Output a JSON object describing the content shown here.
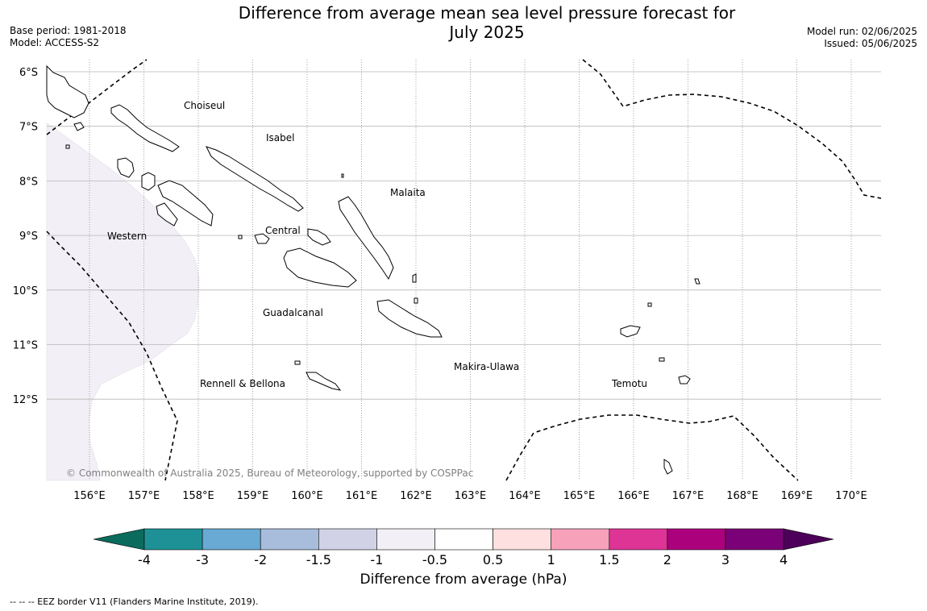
{
  "title": {
    "line1": "Difference from average mean sea level pressure forecast for",
    "line2": "July 2025"
  },
  "meta": {
    "base_period": "Base period: 1981-2018",
    "model": "Model: ACCESS-S2",
    "model_run": "Model run: 02/06/2025",
    "issued": "Issued: 05/06/2025"
  },
  "map": {
    "lat_labels": [
      "6°S",
      "7°S",
      "8°S",
      "9°S",
      "10°S",
      "11°S",
      "12°S"
    ],
    "lon_labels": [
      "156°E",
      "157°E",
      "158°E",
      "159°E",
      "160°E",
      "161°E",
      "162°E",
      "163°E",
      "164°E",
      "165°E",
      "166°E",
      "167°E",
      "168°E",
      "169°E",
      "170°E"
    ],
    "regions": {
      "choiseul": "Choiseul",
      "isabel": "Isabel",
      "malaita": "Malaita",
      "western": "Western",
      "central": "Central",
      "guadalcanal": "Guadalcanal",
      "makira": "Makira-Ulawa",
      "rennell": "Rennell & Bellona",
      "temotu": "Temotu"
    },
    "copyright": "© Commonwealth of Australia 2025, Bureau of Meteorology, supported by COSPPac",
    "shading_color": "#f3eff6",
    "eez_color": "#000000"
  },
  "colorbar": {
    "labels": [
      "-4",
      "-3",
      "-2",
      "-1.5",
      "-1",
      "-0.5",
      "0.5",
      "1",
      "1.5",
      "2",
      "3",
      "4"
    ],
    "colors": {
      "below_min": "#0b6b5c",
      "bins": [
        "#1e9196",
        "#68aad3",
        "#a8bcdc",
        "#d1d2e6",
        "#f3eff6",
        "#ffffff",
        "#fde0df",
        "#f7a1bb",
        "#dd3496",
        "#ac017d",
        "#7a0177"
      ],
      "above_max": "#4d0059"
    },
    "label": "Difference from average (hPa)"
  },
  "footnote": "--  --  -- EEZ border V11 (Flanders Marine Institute, 2019)."
}
